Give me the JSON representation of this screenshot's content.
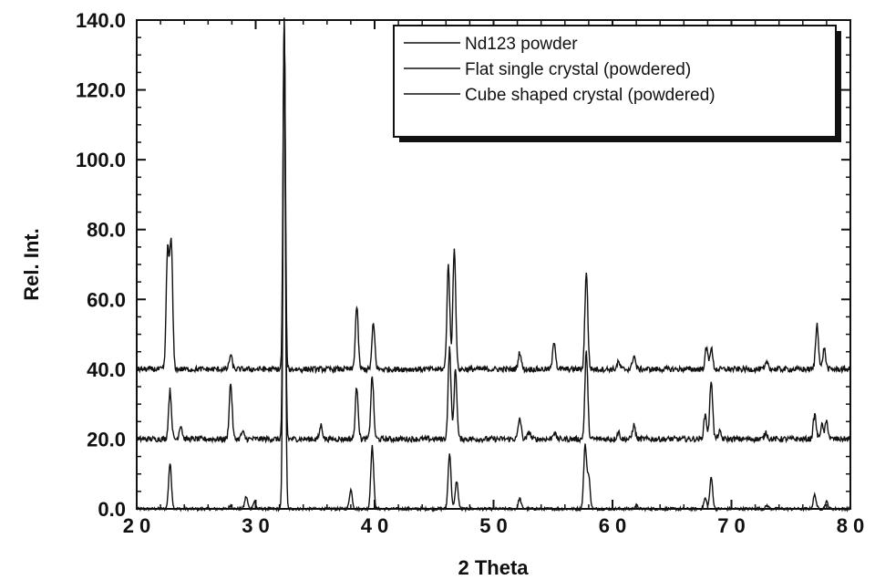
{
  "chart_data": {
    "type": "line",
    "title": "",
    "xlabel": "2 Theta",
    "ylabel": "Rel. Int.",
    "xlim": [
      20,
      80
    ],
    "ylim": [
      0,
      140
    ],
    "x_ticks": [
      20,
      30,
      40,
      50,
      60,
      70,
      80
    ],
    "x_tick_labels": [
      "2 0",
      "3 0",
      "4 0",
      "5 0",
      "6 0",
      "7 0",
      "8 0"
    ],
    "y_ticks": [
      0,
      20,
      40,
      60,
      80,
      100,
      120,
      140
    ],
    "y_tick_labels": [
      "0.0",
      "20.0",
      "40.0",
      "60.0",
      "80.0",
      "100.0",
      "120.0",
      "140.0"
    ],
    "legend_position": "top-right",
    "grid": false,
    "series": [
      {
        "name": "Nd123 powder",
        "color": "#111111",
        "baseline": 0,
        "peaks": [
          [
            22.8,
            13
          ],
          [
            27.9,
            1
          ],
          [
            29.2,
            3.5
          ],
          [
            29.9,
            2
          ],
          [
            32.4,
            140
          ],
          [
            38.0,
            5.5
          ],
          [
            39.8,
            18
          ],
          [
            46.3,
            16
          ],
          [
            46.9,
            8
          ],
          [
            52.2,
            3
          ],
          [
            57.7,
            18
          ],
          [
            58.0,
            9
          ],
          [
            62.0,
            1
          ],
          [
            67.8,
            3
          ],
          [
            68.3,
            9
          ],
          [
            73.0,
            1
          ],
          [
            77.0,
            4
          ],
          [
            78.0,
            2
          ]
        ]
      },
      {
        "name": "Flat single crystal (powdered)",
        "color": "#111111",
        "baseline": 20,
        "peaks": [
          [
            22.8,
            34
          ],
          [
            23.7,
            24
          ],
          [
            27.9,
            36
          ],
          [
            28.9,
            22
          ],
          [
            32.4,
            140
          ],
          [
            35.5,
            24
          ],
          [
            38.5,
            35
          ],
          [
            39.8,
            38
          ],
          [
            46.3,
            46
          ],
          [
            46.8,
            40
          ],
          [
            52.2,
            26
          ],
          [
            53.0,
            22
          ],
          [
            55.1,
            22
          ],
          [
            57.8,
            45
          ],
          [
            60.5,
            22
          ],
          [
            61.8,
            24
          ],
          [
            67.8,
            27
          ],
          [
            68.3,
            37
          ],
          [
            69.0,
            22
          ],
          [
            72.9,
            22
          ],
          [
            77.0,
            27
          ],
          [
            77.6,
            24
          ],
          [
            78.0,
            25
          ]
        ]
      },
      {
        "name": "Cube shaped crystal (powdered)",
        "color": "#111111",
        "baseline": 40,
        "peaks": [
          [
            22.6,
            74
          ],
          [
            22.9,
            76
          ],
          [
            27.9,
            44
          ],
          [
            32.4,
            140
          ],
          [
            38.5,
            58
          ],
          [
            39.9,
            53
          ],
          [
            46.2,
            70
          ],
          [
            46.7,
            75
          ],
          [
            52.2,
            45
          ],
          [
            55.1,
            48
          ],
          [
            57.8,
            68
          ],
          [
            60.5,
            42
          ],
          [
            61.8,
            44
          ],
          [
            67.9,
            46
          ],
          [
            68.3,
            46
          ],
          [
            73.0,
            42
          ],
          [
            77.2,
            53
          ],
          [
            77.8,
            46
          ]
        ]
      }
    ]
  }
}
